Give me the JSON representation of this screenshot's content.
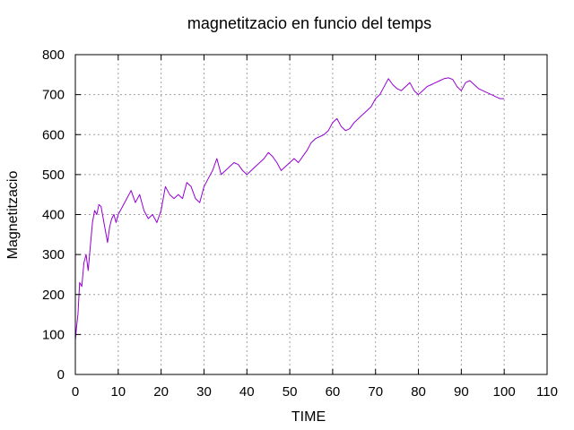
{
  "chart_data": {
    "type": "line",
    "title": "magnetitzacio en funcio del temps",
    "xlabel": "TIME",
    "ylabel": "Magnetitzacio",
    "xlim": [
      0,
      110
    ],
    "ylim": [
      0,
      800
    ],
    "xticks": [
      0,
      10,
      20,
      30,
      40,
      50,
      60,
      70,
      80,
      90,
      100,
      110
    ],
    "yticks": [
      0,
      100,
      200,
      300,
      400,
      500,
      600,
      700,
      800
    ],
    "grid": true,
    "legend": "none",
    "line_color": "#9400d3",
    "series": [
      {
        "x": [
          0,
          0.3,
          0.6,
          1,
          1.5,
          2,
          2.5,
          3,
          3.5,
          4,
          4.5,
          5,
          5.5,
          6,
          6.5,
          7,
          7.5,
          8,
          8.5,
          9,
          9.5,
          10,
          11,
          12,
          13,
          14,
          15,
          16,
          17,
          18,
          19,
          20,
          21,
          22,
          23,
          24,
          25,
          26,
          27,
          28,
          29,
          30,
          31,
          32,
          33,
          34,
          35,
          36,
          37,
          38,
          39,
          40,
          41,
          42,
          43,
          44,
          45,
          46,
          47,
          48,
          49,
          50,
          51,
          52,
          53,
          54,
          55,
          56,
          57,
          58,
          59,
          60,
          61,
          62,
          63,
          64,
          65,
          66,
          67,
          68,
          69,
          70,
          71,
          72,
          73,
          74,
          75,
          76,
          77,
          78,
          79,
          80,
          81,
          82,
          83,
          84,
          85,
          86,
          87,
          88,
          89,
          90,
          91,
          92,
          93,
          94,
          95,
          96,
          97,
          98,
          99,
          100
        ],
        "y": [
          85,
          120,
          150,
          230,
          220,
          280,
          300,
          260,
          320,
          380,
          410,
          400,
          425,
          420,
          390,
          360,
          330,
          370,
          390,
          400,
          380,
          400,
          420,
          440,
          460,
          430,
          450,
          410,
          390,
          400,
          380,
          410,
          470,
          450,
          440,
          450,
          440,
          480,
          470,
          440,
          430,
          470,
          490,
          510,
          540,
          500,
          510,
          520,
          530,
          525,
          510,
          500,
          510,
          520,
          530,
          540,
          555,
          545,
          530,
          510,
          520,
          530,
          540,
          530,
          545,
          560,
          580,
          590,
          595,
          600,
          610,
          630,
          640,
          620,
          610,
          615,
          630,
          640,
          650,
          660,
          670,
          690,
          700,
          720,
          740,
          725,
          715,
          710,
          720,
          730,
          710,
          700,
          710,
          720,
          725,
          730,
          735,
          740,
          742,
          738,
          720,
          710,
          730,
          735,
          725,
          715,
          710,
          705,
          700,
          695,
          690,
          690
        ]
      }
    ]
  }
}
